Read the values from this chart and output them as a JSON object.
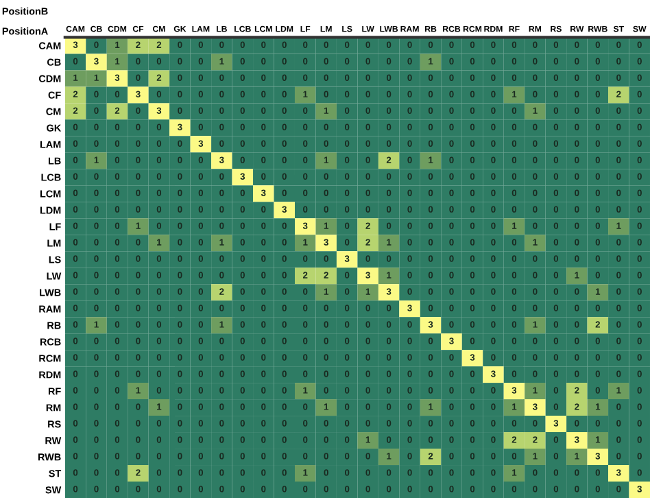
{
  "chart_data": {
    "type": "heatmap",
    "xlabel": "PositionB",
    "ylabel": "PositionA",
    "categories": [
      "CAM",
      "CB",
      "CDM",
      "CF",
      "CM",
      "GK",
      "LAM",
      "LB",
      "LCB",
      "LCM",
      "LDM",
      "LF",
      "LM",
      "LS",
      "LW",
      "LWB",
      "RAM",
      "RB",
      "RCB",
      "RCM",
      "RDM",
      "RF",
      "RM",
      "RS",
      "RW",
      "RWB",
      "ST",
      "SW"
    ],
    "y_categories": [
      "CAM",
      "CB",
      "CDM",
      "CF",
      "CM",
      "GK",
      "LAM",
      "LB",
      "LCB",
      "LCM",
      "LDM",
      "LF",
      "LM",
      "LS",
      "LW",
      "LWB",
      "RAM",
      "RB",
      "RCB",
      "RCM",
      "RDM",
      "RF",
      "RM",
      "RS",
      "RW",
      "RWB",
      "ST",
      "SW"
    ],
    "cells": [
      [
        3,
        0,
        1,
        2,
        2,
        0,
        0,
        0,
        0,
        0,
        0,
        0,
        0,
        0,
        0,
        0,
        0,
        0,
        0,
        0,
        0,
        0,
        0,
        0,
        0,
        0,
        0,
        0
      ],
      [
        0,
        3,
        1,
        0,
        0,
        0,
        0,
        1,
        0,
        0,
        0,
        0,
        0,
        0,
        0,
        0,
        0,
        1,
        0,
        0,
        0,
        0,
        0,
        0,
        0,
        0,
        0,
        0
      ],
      [
        1,
        1,
        3,
        0,
        2,
        0,
        0,
        0,
        0,
        0,
        0,
        0,
        0,
        0,
        0,
        0,
        0,
        0,
        0,
        0,
        0,
        0,
        0,
        0,
        0,
        0,
        0,
        0
      ],
      [
        2,
        0,
        0,
        3,
        0,
        0,
        0,
        0,
        0,
        0,
        0,
        1,
        0,
        0,
        0,
        0,
        0,
        0,
        0,
        0,
        0,
        1,
        0,
        0,
        0,
        0,
        2,
        0
      ],
      [
        2,
        0,
        2,
        0,
        3,
        0,
        0,
        0,
        0,
        0,
        0,
        0,
        1,
        0,
        0,
        0,
        0,
        0,
        0,
        0,
        0,
        0,
        1,
        0,
        0,
        0,
        0,
        0
      ],
      [
        0,
        0,
        0,
        0,
        0,
        3,
        0,
        0,
        0,
        0,
        0,
        0,
        0,
        0,
        0,
        0,
        0,
        0,
        0,
        0,
        0,
        0,
        0,
        0,
        0,
        0,
        0,
        0
      ],
      [
        0,
        0,
        0,
        0,
        0,
        0,
        3,
        0,
        0,
        0,
        0,
        0,
        0,
        0,
        0,
        0,
        0,
        0,
        0,
        0,
        0,
        0,
        0,
        0,
        0,
        0,
        0,
        0
      ],
      [
        0,
        1,
        0,
        0,
        0,
        0,
        0,
        3,
        0,
        0,
        0,
        0,
        1,
        0,
        0,
        2,
        0,
        1,
        0,
        0,
        0,
        0,
        0,
        0,
        0,
        0,
        0,
        0
      ],
      [
        0,
        0,
        0,
        0,
        0,
        0,
        0,
        0,
        3,
        0,
        0,
        0,
        0,
        0,
        0,
        0,
        0,
        0,
        0,
        0,
        0,
        0,
        0,
        0,
        0,
        0,
        0,
        0
      ],
      [
        0,
        0,
        0,
        0,
        0,
        0,
        0,
        0,
        0,
        3,
        0,
        0,
        0,
        0,
        0,
        0,
        0,
        0,
        0,
        0,
        0,
        0,
        0,
        0,
        0,
        0,
        0,
        0
      ],
      [
        0,
        0,
        0,
        0,
        0,
        0,
        0,
        0,
        0,
        0,
        3,
        0,
        0,
        0,
        0,
        0,
        0,
        0,
        0,
        0,
        0,
        0,
        0,
        0,
        0,
        0,
        0,
        0
      ],
      [
        0,
        0,
        0,
        1,
        0,
        0,
        0,
        0,
        0,
        0,
        0,
        3,
        1,
        0,
        2,
        0,
        0,
        0,
        0,
        0,
        0,
        1,
        0,
        0,
        0,
        0,
        1,
        0
      ],
      [
        0,
        0,
        0,
        0,
        1,
        0,
        0,
        1,
        0,
        0,
        0,
        1,
        3,
        0,
        2,
        1,
        0,
        0,
        0,
        0,
        0,
        0,
        1,
        0,
        0,
        0,
        0,
        0
      ],
      [
        0,
        0,
        0,
        0,
        0,
        0,
        0,
        0,
        0,
        0,
        0,
        0,
        0,
        3,
        0,
        0,
        0,
        0,
        0,
        0,
        0,
        0,
        0,
        0,
        0,
        0,
        0,
        0
      ],
      [
        0,
        0,
        0,
        0,
        0,
        0,
        0,
        0,
        0,
        0,
        0,
        2,
        2,
        0,
        3,
        1,
        0,
        0,
        0,
        0,
        0,
        0,
        0,
        0,
        1,
        0,
        0,
        0
      ],
      [
        0,
        0,
        0,
        0,
        0,
        0,
        0,
        2,
        0,
        0,
        0,
        0,
        1,
        0,
        1,
        3,
        0,
        0,
        0,
        0,
        0,
        0,
        0,
        0,
        0,
        1,
        0,
        0
      ],
      [
        0,
        0,
        0,
        0,
        0,
        0,
        0,
        0,
        0,
        0,
        0,
        0,
        0,
        0,
        0,
        0,
        3,
        0,
        0,
        0,
        0,
        0,
        0,
        0,
        0,
        0,
        0,
        0
      ],
      [
        0,
        1,
        0,
        0,
        0,
        0,
        0,
        1,
        0,
        0,
        0,
        0,
        0,
        0,
        0,
        0,
        0,
        3,
        0,
        0,
        0,
        0,
        1,
        0,
        0,
        2,
        0,
        0
      ],
      [
        0,
        0,
        0,
        0,
        0,
        0,
        0,
        0,
        0,
        0,
        0,
        0,
        0,
        0,
        0,
        0,
        0,
        0,
        3,
        0,
        0,
        0,
        0,
        0,
        0,
        0,
        0,
        0
      ],
      [
        0,
        0,
        0,
        0,
        0,
        0,
        0,
        0,
        0,
        0,
        0,
        0,
        0,
        0,
        0,
        0,
        0,
        0,
        0,
        3,
        0,
        0,
        0,
        0,
        0,
        0,
        0,
        0
      ],
      [
        0,
        0,
        0,
        0,
        0,
        0,
        0,
        0,
        0,
        0,
        0,
        0,
        0,
        0,
        0,
        0,
        0,
        0,
        0,
        0,
        3,
        0,
        0,
        0,
        0,
        0,
        0,
        0
      ],
      [
        0,
        0,
        0,
        1,
        0,
        0,
        0,
        0,
        0,
        0,
        0,
        1,
        0,
        0,
        0,
        0,
        0,
        0,
        0,
        0,
        0,
        3,
        1,
        0,
        2,
        0,
        1,
        0
      ],
      [
        0,
        0,
        0,
        0,
        1,
        0,
        0,
        0,
        0,
        0,
        0,
        0,
        1,
        0,
        0,
        0,
        0,
        1,
        0,
        0,
        0,
        1,
        3,
        0,
        2,
        1,
        0,
        0
      ],
      [
        0,
        0,
        0,
        0,
        0,
        0,
        0,
        0,
        0,
        0,
        0,
        0,
        0,
        0,
        0,
        0,
        0,
        0,
        0,
        0,
        0,
        0,
        0,
        3,
        0,
        0,
        0,
        0
      ],
      [
        0,
        0,
        0,
        0,
        0,
        0,
        0,
        0,
        0,
        0,
        0,
        0,
        0,
        0,
        1,
        0,
        0,
        0,
        0,
        0,
        0,
        2,
        2,
        0,
        3,
        1,
        0,
        0
      ],
      [
        0,
        0,
        0,
        0,
        0,
        0,
        0,
        0,
        0,
        0,
        0,
        0,
        0,
        0,
        0,
        1,
        0,
        2,
        0,
        0,
        0,
        0,
        1,
        0,
        1,
        3,
        0,
        0
      ],
      [
        0,
        0,
        0,
        2,
        0,
        0,
        0,
        0,
        0,
        0,
        0,
        1,
        0,
        0,
        0,
        0,
        0,
        0,
        0,
        0,
        0,
        1,
        0,
        0,
        0,
        0,
        3,
        0
      ],
      [
        0,
        0,
        0,
        0,
        0,
        0,
        0,
        0,
        0,
        0,
        0,
        0,
        0,
        0,
        0,
        0,
        0,
        0,
        0,
        0,
        0,
        0,
        0,
        0,
        0,
        0,
        0,
        3
      ]
    ],
    "data_labels": true
  }
}
